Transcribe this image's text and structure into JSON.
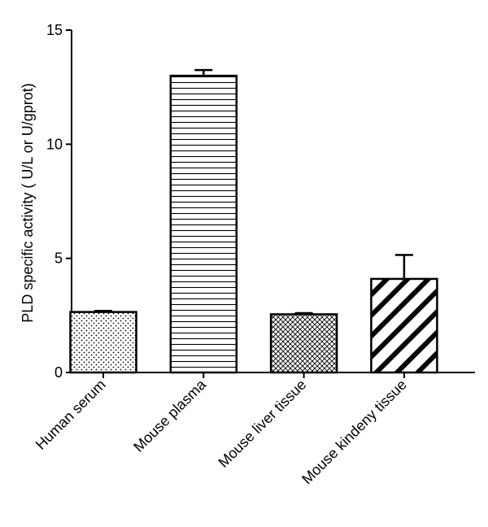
{
  "chart_data": {
    "type": "bar",
    "title": "",
    "xlabel": "",
    "ylabel": "PLD specific activity ( U/L or U/gprot)",
    "ylim": [
      0,
      15
    ],
    "yticks": [
      0,
      5,
      10,
      15
    ],
    "categories": [
      "Human serum",
      "Mouse plasma",
      "Mouse liver tissue",
      "Mouse kindeny tissue"
    ],
    "values": [
      2.65,
      13.0,
      2.55,
      4.1
    ],
    "errors": [
      0.05,
      0.25,
      0.05,
      1.05
    ],
    "patterns": [
      "dots",
      "horizontal-lines",
      "crosshatch",
      "diagonal-stripes"
    ]
  }
}
